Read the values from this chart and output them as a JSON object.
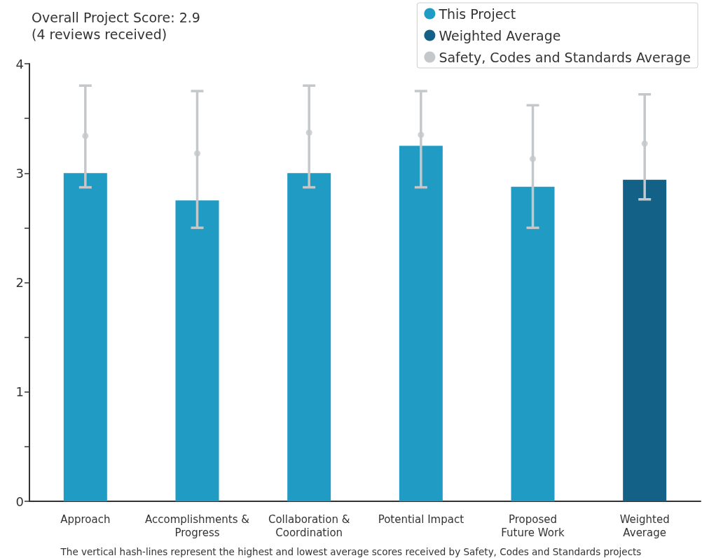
{
  "chart_data": {
    "type": "bar",
    "title": "Overall Project Score: 2.9\n(4 reviews received)",
    "categories": [
      "Approach",
      "Accomplishments &\nProgress",
      "Collaboration &\nCoordination",
      "Potential Impact",
      "Proposed\nFuture Work",
      "Weighted\nAverage"
    ],
    "series": [
      {
        "name": "This Project",
        "color": "#1f9bc4",
        "values": [
          3.0,
          2.75,
          3.0,
          3.25,
          2.875,
          null
        ]
      },
      {
        "name": "Weighted Average",
        "color": "#136187",
        "values": [
          null,
          null,
          null,
          null,
          null,
          2.94
        ]
      },
      {
        "name": "Safety, Codes and Standards Average",
        "type": "scatter",
        "color": "#c4c8ca",
        "values": [
          3.34,
          3.18,
          3.37,
          3.35,
          3.13,
          3.27
        ],
        "errors": [
          [
            2.87,
            3.8
          ],
          [
            2.5,
            3.75
          ],
          [
            2.87,
            3.8
          ],
          [
            2.87,
            3.75
          ],
          [
            2.5,
            3.62
          ],
          [
            2.76,
            3.72
          ]
        ]
      }
    ],
    "ylim": [
      0,
      4
    ],
    "yticks": [
      0,
      {
        "value": 0.5,
        "label": null
      },
      1,
      {
        "value": 1.5,
        "label": null
      },
      2,
      {
        "value": 2.5,
        "label": null
      },
      3,
      {
        "value": 3.5,
        "label": null
      },
      4
    ],
    "grid": false,
    "legend": "top right",
    "marker": "circle",
    "annotations": [
      "The vertical hash-lines represent the highest and lowest average scores received by Safety, Codes and Standards projects"
    ]
  }
}
